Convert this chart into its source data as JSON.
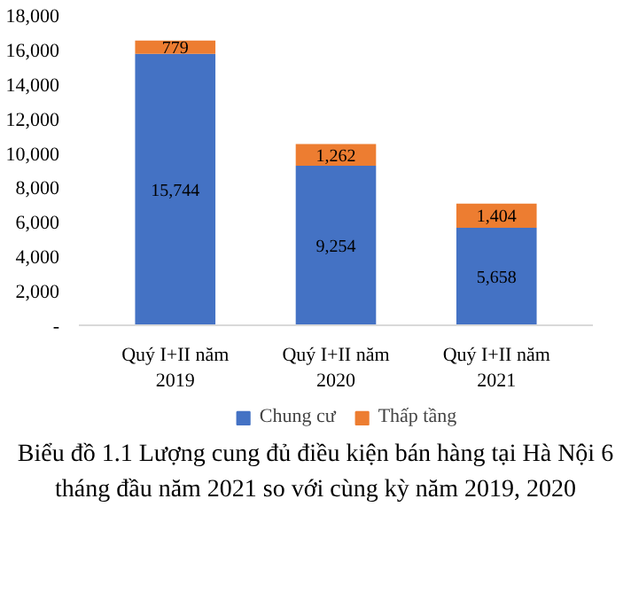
{
  "chart_data": {
    "type": "bar",
    "stacked": true,
    "title": "Biểu đồ 1.1 Lượng cung đủ điều kiện bán hàng tại Hà Nội 6 tháng đầu năm 2021 so với cùng kỳ năm 2019, 2020",
    "categories": [
      "Quý I+II năm 2019",
      "Quý I+II năm 2020",
      "Quý I+II năm 2021"
    ],
    "series": [
      {
        "name": "Chung cư",
        "color": "#4472c4",
        "values": [
          15744,
          9254,
          5658
        ],
        "value_labels": [
          "15,744",
          "9,254",
          "5,658"
        ]
      },
      {
        "name": "Thấp tầng",
        "color": "#ed7d31",
        "values": [
          779,
          1262,
          1404
        ],
        "value_labels": [
          "779",
          "1,262",
          "1,404"
        ]
      }
    ],
    "ylim": [
      0,
      18000
    ],
    "yticks": [
      {
        "value": 0,
        "label": "-"
      },
      {
        "value": 2000,
        "label": "2,000"
      },
      {
        "value": 4000,
        "label": "4,000"
      },
      {
        "value": 6000,
        "label": "6,000"
      },
      {
        "value": 8000,
        "label": "8,000"
      },
      {
        "value": 10000,
        "label": "10,000"
      },
      {
        "value": 12000,
        "label": "12,000"
      },
      {
        "value": 14000,
        "label": "14,000"
      },
      {
        "value": 16000,
        "label": "16,000"
      },
      {
        "value": 18000,
        "label": "18,000"
      }
    ],
    "legend": "bottom",
    "grid": false
  }
}
